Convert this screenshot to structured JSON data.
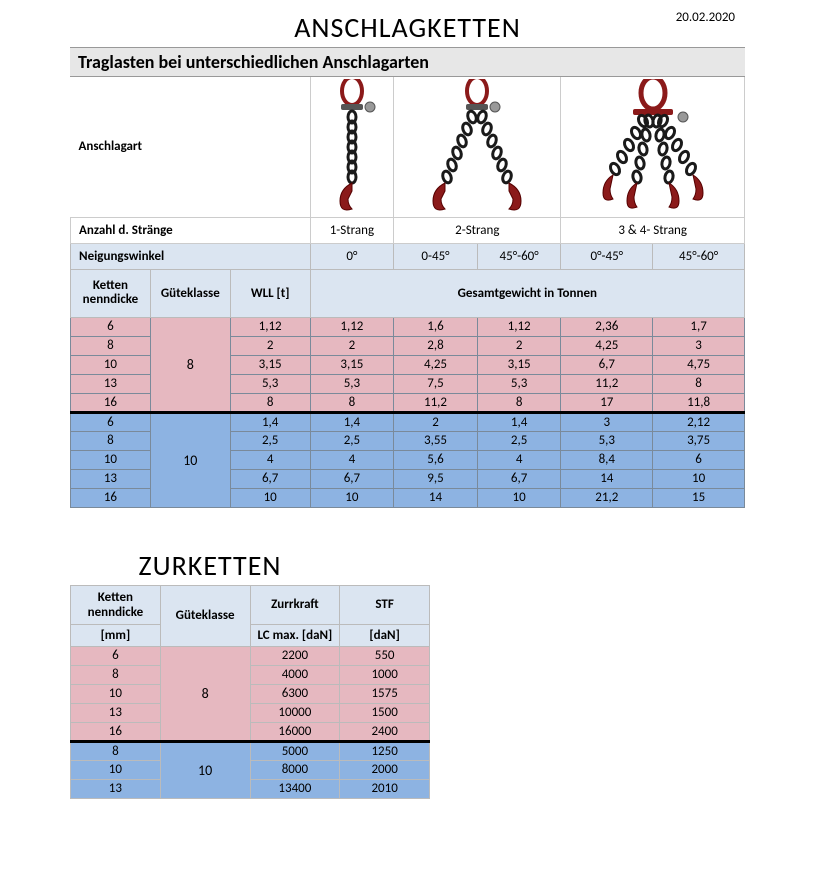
{
  "title": "ANSCHLAGKETTEN",
  "date": "20.02.2020",
  "subtitle": "Traglasten bei unterschiedlichen Anschlagarten",
  "row_anschlagart": "Anschlagart",
  "row_strands_label": "Anzahl d. Stränge",
  "strands": [
    "1-Strang",
    "2-Strang",
    "3 & 4- Strang"
  ],
  "row_angle_label": "Neigungswinkel",
  "angles": [
    "0°",
    "0-45°",
    "45°-60°",
    "0°-45°",
    "45°-60°"
  ],
  "hdr_ketten": "Ketten nenndicke",
  "hdr_guete": "Güteklasse",
  "hdr_wll": "WLL [t]",
  "hdr_gesamt": "Gesamtgewicht in Tonnen",
  "group8_label": "8",
  "group10_label": "10",
  "rows8": [
    {
      "d": "6",
      "wll": "1,12",
      "v": [
        "1,12",
        "1,6",
        "1,12",
        "2,36",
        "1,7"
      ]
    },
    {
      "d": "8",
      "wll": "2",
      "v": [
        "2",
        "2,8",
        "2",
        "4,25",
        "3"
      ]
    },
    {
      "d": "10",
      "wll": "3,15",
      "v": [
        "3,15",
        "4,25",
        "3,15",
        "6,7",
        "4,75"
      ]
    },
    {
      "d": "13",
      "wll": "5,3",
      "v": [
        "5,3",
        "7,5",
        "5,3",
        "11,2",
        "8"
      ]
    },
    {
      "d": "16",
      "wll": "8",
      "v": [
        "8",
        "11,2",
        "8",
        "17",
        "11,8"
      ]
    }
  ],
  "rows10": [
    {
      "d": "6",
      "wll": "1,4",
      "v": [
        "1,4",
        "2",
        "1,4",
        "3",
        "2,12"
      ]
    },
    {
      "d": "8",
      "wll": "2,5",
      "v": [
        "2,5",
        "3,55",
        "2,5",
        "5,3",
        "3,75"
      ]
    },
    {
      "d": "10",
      "wll": "4",
      "v": [
        "4",
        "5,6",
        "4",
        "8,4",
        "6"
      ]
    },
    {
      "d": "13",
      "wll": "6,7",
      "v": [
        "6,7",
        "9,5",
        "6,7",
        "14",
        "10"
      ]
    },
    {
      "d": "16",
      "wll": "10",
      "v": [
        "10",
        "14",
        "10",
        "21,2",
        "15"
      ]
    }
  ],
  "colors": {
    "pink": "#e6b8c0",
    "blue": "#8db3e2",
    "hdr_bg": "#dbe5f1",
    "chain_red": "#8b1a1a",
    "chain_dark": "#1a1a1a"
  },
  "title2": "ZURKETTEN",
  "t2": {
    "hdr_ketten": "Ketten nenndicke",
    "hdr_guete": "Güteklasse",
    "hdr_zurr": "Zurrkraft",
    "hdr_stf": "STF",
    "hdr_mm": "[mm]",
    "hdr_lc": "LC max. [daN]",
    "hdr_dan": "[daN]",
    "group8_label": "8",
    "group10_label": "10",
    "rows8": [
      {
        "d": "6",
        "lc": "2200",
        "stf": "550"
      },
      {
        "d": "8",
        "lc": "4000",
        "stf": "1000"
      },
      {
        "d": "10",
        "lc": "6300",
        "stf": "1575"
      },
      {
        "d": "13",
        "lc": "10000",
        "stf": "1500"
      },
      {
        "d": "16",
        "lc": "16000",
        "stf": "2400"
      }
    ],
    "rows10": [
      {
        "d": "8",
        "lc": "5000",
        "stf": "1250"
      },
      {
        "d": "10",
        "lc": "8000",
        "stf": "2000"
      },
      {
        "d": "13",
        "lc": "13400",
        "stf": "2010"
      }
    ]
  }
}
